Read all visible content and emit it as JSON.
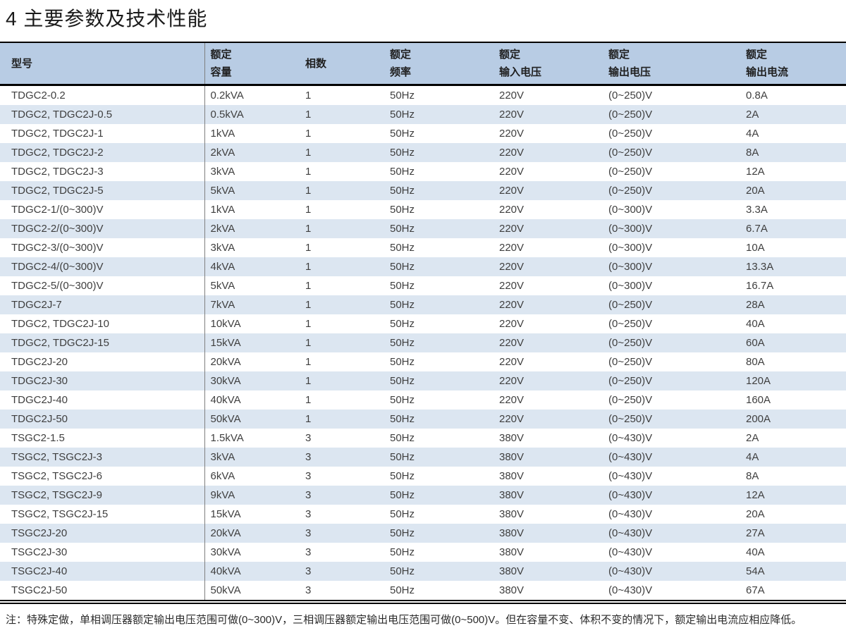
{
  "page": {
    "title": "4 主要参数及技术性能",
    "note": "注：特殊定做，单相调压器额定输出电压范围可做(0~300)V，三相调压器额定输出电压范围可做(0~500)V。但在容量不变、体积不变的情况下，额定输出电流应相应降低。"
  },
  "colors": {
    "header_bg": "#b8cce4",
    "alt_row_bg": "#dce6f1",
    "row_bg": "#ffffff",
    "border": "#000000",
    "column_divider": "#7f7f7f",
    "text": "#3f3f3f"
  },
  "table": {
    "headers": [
      {
        "line1": "型号",
        "line2": ""
      },
      {
        "line1": "额定",
        "line2": "容量"
      },
      {
        "line1": "相数",
        "line2": ""
      },
      {
        "line1": "额定",
        "line2": "频率"
      },
      {
        "line1": "额定",
        "line2": "输入电压"
      },
      {
        "line1": "额定",
        "line2": "输出电压"
      },
      {
        "line1": "额定",
        "line2": "输出电流"
      }
    ],
    "column_keys": [
      "model",
      "capacity",
      "phases",
      "frequency",
      "input-voltage",
      "output-voltage",
      "output-current"
    ],
    "rows": [
      [
        "TDGC2-0.2",
        "0.2kVA",
        "1",
        "50Hz",
        "220V",
        "(0~250)V",
        "0.8A"
      ],
      [
        "TDGC2, TDGC2J-0.5",
        "0.5kVA",
        "1",
        "50Hz",
        "220V",
        "(0~250)V",
        "2A"
      ],
      [
        "TDGC2, TDGC2J-1",
        "1kVA",
        "1",
        "50Hz",
        "220V",
        "(0~250)V",
        "4A"
      ],
      [
        "TDGC2, TDGC2J-2",
        "2kVA",
        "1",
        "50Hz",
        "220V",
        "(0~250)V",
        "8A"
      ],
      [
        "TDGC2, TDGC2J-3",
        "3kVA",
        "1",
        "50Hz",
        "220V",
        "(0~250)V",
        "12A"
      ],
      [
        "TDGC2, TDGC2J-5",
        "5kVA",
        "1",
        "50Hz",
        "220V",
        "(0~250)V",
        "20A"
      ],
      [
        "TDGC2-1/(0~300)V",
        "1kVA",
        "1",
        "50Hz",
        "220V",
        "(0~300)V",
        "3.3A"
      ],
      [
        "TDGC2-2/(0~300)V",
        "2kVA",
        "1",
        "50Hz",
        "220V",
        "(0~300)V",
        "6.7A"
      ],
      [
        "TDGC2-3/(0~300)V",
        "3kVA",
        "1",
        "50Hz",
        "220V",
        "(0~300)V",
        "10A"
      ],
      [
        "TDGC2-4/(0~300)V",
        "4kVA",
        "1",
        "50Hz",
        "220V",
        "(0~300)V",
        "13.3A"
      ],
      [
        "TDGC2-5/(0~300)V",
        "5kVA",
        "1",
        "50Hz",
        "220V",
        "(0~300)V",
        "16.7A"
      ],
      [
        "TDGC2J-7",
        "7kVA",
        "1",
        "50Hz",
        "220V",
        "(0~250)V",
        "28A"
      ],
      [
        "TDGC2, TDGC2J-10",
        "10kVA",
        "1",
        "50Hz",
        "220V",
        "(0~250)V",
        "40A"
      ],
      [
        "TDGC2, TDGC2J-15",
        "15kVA",
        "1",
        "50Hz",
        "220V",
        "(0~250)V",
        "60A"
      ],
      [
        "TDGC2J-20",
        "20kVA",
        "1",
        "50Hz",
        "220V",
        "(0~250)V",
        "80A"
      ],
      [
        "TDGC2J-30",
        "30kVA",
        "1",
        "50Hz",
        "220V",
        "(0~250)V",
        "120A"
      ],
      [
        "TDGC2J-40",
        "40kVA",
        "1",
        "50Hz",
        "220V",
        "(0~250)V",
        "160A"
      ],
      [
        "TDGC2J-50",
        "50kVA",
        "1",
        "50Hz",
        "220V",
        "(0~250)V",
        "200A"
      ],
      [
        "TSGC2-1.5",
        "1.5kVA",
        "3",
        "50Hz",
        "380V",
        "(0~430)V",
        "2A"
      ],
      [
        "TSGC2, TSGC2J-3",
        "3kVA",
        "3",
        "50Hz",
        "380V",
        "(0~430)V",
        "4A"
      ],
      [
        "TSGC2, TSGC2J-6",
        "6kVA",
        "3",
        "50Hz",
        "380V",
        "(0~430)V",
        "8A"
      ],
      [
        "TSGC2, TSGC2J-9",
        "9kVA",
        "3",
        "50Hz",
        "380V",
        "(0~430)V",
        "12A"
      ],
      [
        "TSGC2, TSGC2J-15",
        "15kVA",
        "3",
        "50Hz",
        "380V",
        "(0~430)V",
        "20A"
      ],
      [
        "TSGC2J-20",
        "20kVA",
        "3",
        "50Hz",
        "380V",
        "(0~430)V",
        "27A"
      ],
      [
        "TSGC2J-30",
        "30kVA",
        "3",
        "50Hz",
        "380V",
        "(0~430)V",
        "40A"
      ],
      [
        "TSGC2J-40",
        "40kVA",
        "3",
        "50Hz",
        "380V",
        "(0~430)V",
        "54A"
      ],
      [
        "TSGC2J-50",
        "50kVA",
        "3",
        "50Hz",
        "380V",
        "(0~430)V",
        "67A"
      ]
    ]
  }
}
